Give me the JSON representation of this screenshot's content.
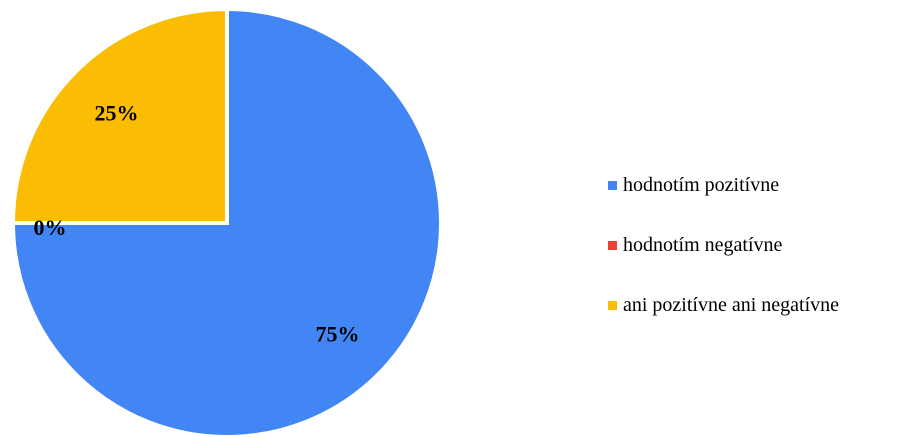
{
  "chart_data": {
    "type": "pie",
    "title": "",
    "series": [
      {
        "name": "hodnotím pozitívne",
        "value": 75,
        "label": "75%",
        "color": "#4285F4"
      },
      {
        "name": "hodnotím negatívne",
        "value": 0,
        "label": "0%",
        "color": "#EA4335"
      },
      {
        "name": "ani pozitívne ani negatívne",
        "value": 25,
        "label": "25%",
        "color": "#FBBC04"
      }
    ],
    "legend_position": "right"
  }
}
